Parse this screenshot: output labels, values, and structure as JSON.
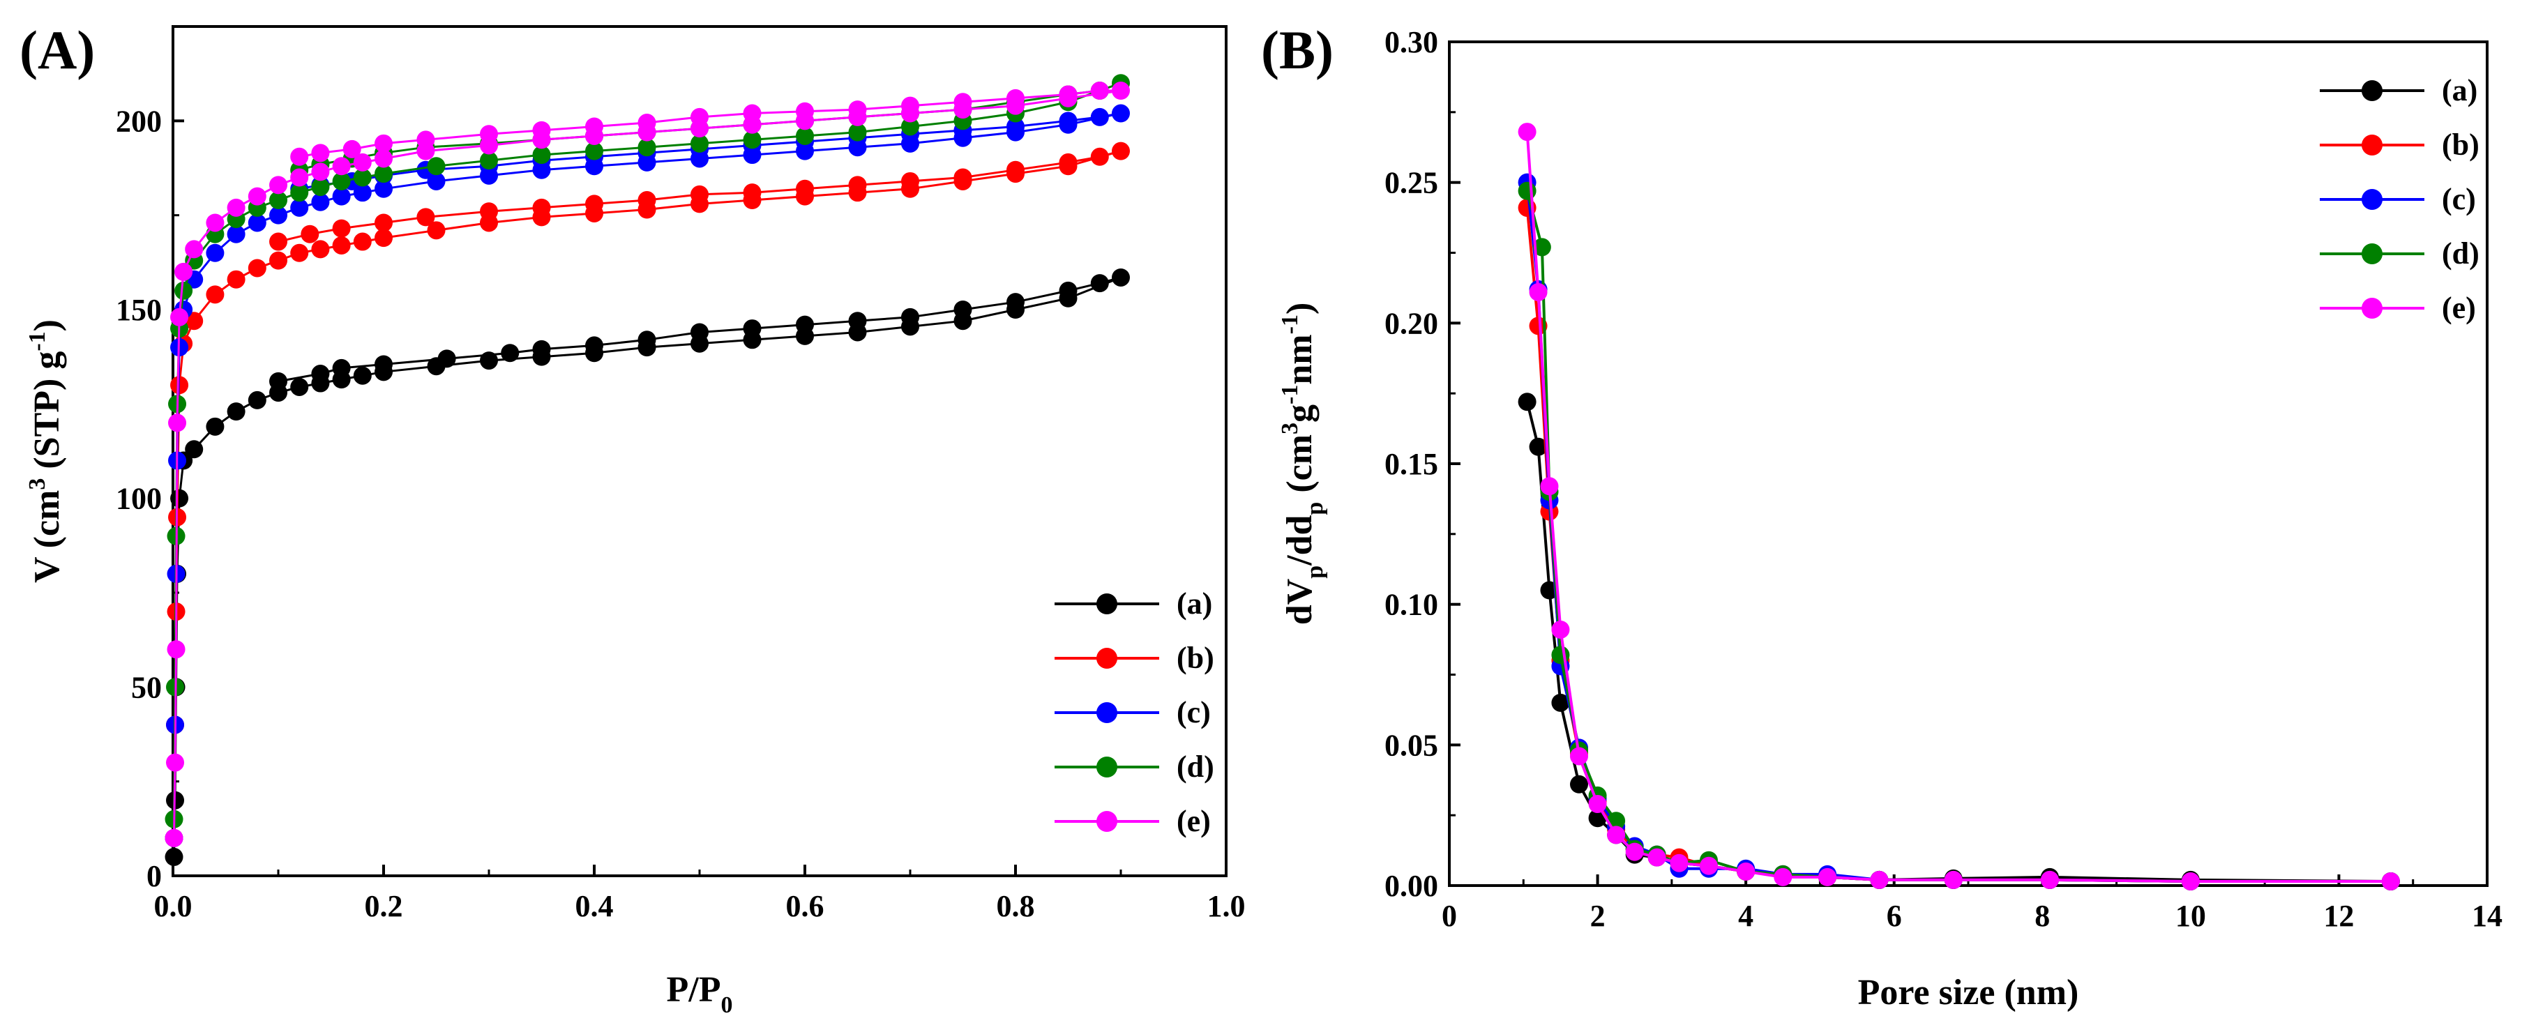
{
  "chart_data": [
    {
      "type": "scatter",
      "panel_label": "(A)",
      "xlabel_main": "P/P",
      "xlabel_sub": "0",
      "ylabel_parts": {
        "a": "V (cm",
        "sup1": "3",
        "b": " (STP) g",
        "sup2": "-1",
        "c": ")"
      },
      "xlim": [
        0,
        1.0
      ],
      "ylim": [
        0,
        225
      ],
      "xticks": [
        "0.0",
        "0.2",
        "0.4",
        "0.6",
        "0.8",
        "1.0"
      ],
      "yticks": [
        "0",
        "50",
        "100",
        "150",
        "200"
      ],
      "legend_position": "bottom-right",
      "series": [
        {
          "name": "(a)",
          "color": "#000000",
          "x": [
            0.001,
            0.002,
            0.003,
            0.004,
            0.006,
            0.01,
            0.02,
            0.04,
            0.06,
            0.08,
            0.1,
            0.12,
            0.14,
            0.16,
            0.18,
            0.2,
            0.25,
            0.3,
            0.35,
            0.4,
            0.45,
            0.5,
            0.55,
            0.6,
            0.65,
            0.7,
            0.75,
            0.8,
            0.85,
            0.9,
            0.88,
            0.85,
            0.8,
            0.75,
            0.7,
            0.65,
            0.6,
            0.55,
            0.5,
            0.45,
            0.4,
            0.35,
            0.32,
            0.26,
            0.2,
            0.16,
            0.14,
            0.1
          ],
          "y": [
            5,
            20,
            50,
            80,
            100,
            110,
            113,
            119,
            123,
            126,
            128,
            129.5,
            130.5,
            131.5,
            132.5,
            133.5,
            135,
            136.5,
            137.5,
            138.5,
            140,
            141,
            142,
            143,
            144,
            145.5,
            147,
            150,
            153,
            158.5,
            157,
            155,
            152,
            150,
            148,
            147,
            146,
            145,
            144,
            142,
            140.5,
            139.5,
            138.5,
            137,
            135.5,
            134.5,
            133,
            131
          ]
        },
        {
          "name": "(b)",
          "color": "#ff0000",
          "x": [
            0.001,
            0.002,
            0.003,
            0.004,
            0.006,
            0.01,
            0.02,
            0.04,
            0.06,
            0.08,
            0.1,
            0.12,
            0.14,
            0.16,
            0.18,
            0.2,
            0.25,
            0.3,
            0.35,
            0.4,
            0.45,
            0.5,
            0.55,
            0.6,
            0.65,
            0.7,
            0.75,
            0.8,
            0.85,
            0.9,
            0.88,
            0.85,
            0.8,
            0.75,
            0.7,
            0.65,
            0.6,
            0.55,
            0.5,
            0.45,
            0.4,
            0.35,
            0.3,
            0.24,
            0.2,
            0.16,
            0.13,
            0.1
          ],
          "y": [
            10,
            40,
            70,
            95,
            130,
            141,
            147,
            154,
            158,
            161,
            163,
            165,
            166,
            167,
            168,
            169,
            171,
            173,
            174.5,
            175.5,
            176.5,
            178,
            179,
            180,
            181,
            182,
            184,
            186,
            188,
            192,
            190.5,
            189,
            187,
            185,
            184,
            183,
            182,
            181,
            180.5,
            179,
            178,
            177,
            176,
            174.5,
            173,
            171.5,
            170,
            168
          ]
        },
        {
          "name": "(c)",
          "color": "#0000ff",
          "x": [
            0.001,
            0.002,
            0.003,
            0.004,
            0.006,
            0.01,
            0.02,
            0.04,
            0.06,
            0.08,
            0.1,
            0.12,
            0.14,
            0.16,
            0.18,
            0.2,
            0.25,
            0.3,
            0.35,
            0.4,
            0.45,
            0.5,
            0.55,
            0.6,
            0.65,
            0.7,
            0.75,
            0.8,
            0.85,
            0.9,
            0.88,
            0.85,
            0.8,
            0.75,
            0.7,
            0.65,
            0.6,
            0.55,
            0.5,
            0.45,
            0.4,
            0.35,
            0.3,
            0.24,
            0.2,
            0.17,
            0.14,
            0.12
          ],
          "y": [
            10,
            40,
            80,
            110,
            140,
            150,
            158,
            165,
            170,
            173,
            175,
            177,
            178.5,
            180,
            181,
            182,
            184,
            185.5,
            187,
            188,
            189,
            190,
            191,
            192,
            193,
            194,
            195.5,
            197,
            199,
            202,
            201,
            200,
            198.5,
            197.5,
            196.5,
            195.5,
            194.5,
            193.5,
            192.5,
            191.5,
            190.5,
            189.5,
            188,
            187,
            185.5,
            184,
            183,
            182
          ]
        },
        {
          "name": "(d)",
          "color": "#008000",
          "x": [
            0.001,
            0.002,
            0.003,
            0.004,
            0.006,
            0.01,
            0.02,
            0.04,
            0.06,
            0.08,
            0.1,
            0.12,
            0.14,
            0.16,
            0.18,
            0.2,
            0.25,
            0.3,
            0.35,
            0.4,
            0.45,
            0.5,
            0.55,
            0.6,
            0.65,
            0.7,
            0.75,
            0.8,
            0.85,
            0.9,
            0.88,
            0.85,
            0.8,
            0.75,
            0.7,
            0.65,
            0.6,
            0.55,
            0.5,
            0.45,
            0.4,
            0.35,
            0.3,
            0.24,
            0.2,
            0.17,
            0.14,
            0.12
          ],
          "y": [
            15,
            50,
            90,
            125,
            145,
            155,
            163,
            170,
            174,
            177,
            179,
            181,
            182.5,
            184,
            185,
            186,
            188,
            189.5,
            191,
            192,
            193,
            194,
            195,
            196,
            197,
            198.5,
            200,
            202,
            205,
            210,
            208,
            207,
            205,
            203,
            202,
            201,
            200,
            199,
            198,
            197,
            196,
            195,
            194,
            193,
            191.5,
            190,
            188.5,
            187
          ]
        },
        {
          "name": "(e)",
          "color": "#ff00ff",
          "x": [
            0.001,
            0.002,
            0.003,
            0.004,
            0.006,
            0.01,
            0.02,
            0.04,
            0.06,
            0.08,
            0.1,
            0.12,
            0.14,
            0.16,
            0.18,
            0.2,
            0.24,
            0.3,
            0.35,
            0.4,
            0.45,
            0.5,
            0.55,
            0.6,
            0.65,
            0.7,
            0.75,
            0.8,
            0.85,
            0.9,
            0.88,
            0.85,
            0.8,
            0.75,
            0.7,
            0.65,
            0.6,
            0.55,
            0.5,
            0.45,
            0.4,
            0.35,
            0.3,
            0.24,
            0.2,
            0.17,
            0.14,
            0.12
          ],
          "y": [
            10,
            30,
            60,
            120,
            148,
            160,
            166,
            173,
            177,
            180,
            183,
            185,
            186.5,
            188,
            189,
            190,
            192,
            193.5,
            195,
            196,
            197,
            198,
            199,
            200,
            201,
            202,
            203,
            204,
            206,
            208,
            208,
            207,
            206,
            205,
            204,
            203,
            202.5,
            202,
            201,
            199.5,
            198.5,
            197.5,
            196.5,
            195,
            194,
            192.5,
            191.5,
            190.5
          ]
        }
      ]
    },
    {
      "type": "line",
      "panel_label": "(B)",
      "xlabel": "Pore size (nm)",
      "ylabel_parts": {
        "a": "dV",
        "sub1": "p",
        "b": "/dd",
        "sub2": "p",
        "c": " (cm",
        "sup1": "3",
        "d": "g",
        "sup2": "-1",
        "e": "nm",
        "sup3": "-1",
        "f": ")"
      },
      "xlim": [
        0,
        14
      ],
      "ylim": [
        0,
        0.3
      ],
      "xticks": [
        "0",
        "2",
        "4",
        "6",
        "8",
        "10",
        "12",
        "14"
      ],
      "yticks": [
        "0.00",
        "0.05",
        "0.10",
        "0.15",
        "0.20",
        "0.25",
        "0.30"
      ],
      "legend_position": "top-right",
      "series": [
        {
          "name": "(a)",
          "color": "#000000",
          "x": [
            1.05,
            1.2,
            1.35,
            1.5,
            1.75,
            2.0,
            2.25,
            2.5,
            2.8,
            3.1,
            3.5,
            4.0,
            4.5,
            5.1,
            5.8,
            6.8,
            8.1,
            10.0,
            12.7
          ],
          "y": [
            0.172,
            0.156,
            0.105,
            0.065,
            0.036,
            0.024,
            0.018,
            0.011,
            0.01,
            0.008,
            0.007,
            0.005,
            0.004,
            0.003,
            0.002,
            0.0025,
            0.003,
            0.002,
            0.0015
          ]
        },
        {
          "name": "(b)",
          "color": "#ff0000",
          "x": [
            1.05,
            1.2,
            1.35,
            1.5,
            1.75,
            2.0,
            2.25,
            2.5,
            2.8,
            3.1,
            3.5,
            4.0,
            4.5,
            5.1,
            5.8,
            6.8,
            8.1,
            10.0,
            12.7
          ],
          "y": [
            0.241,
            0.199,
            0.133,
            0.08,
            0.047,
            0.03,
            0.02,
            0.013,
            0.011,
            0.01,
            0.007,
            0.005,
            0.004,
            0.003,
            0.002,
            0.002,
            0.002,
            0.0015,
            0.0015
          ]
        },
        {
          "name": "(c)",
          "color": "#0000ff",
          "x": [
            1.05,
            1.2,
            1.35,
            1.5,
            1.75,
            2.0,
            2.25,
            2.5,
            2.8,
            3.1,
            3.5,
            4.0,
            4.5,
            5.1,
            5.8,
            6.8,
            8.1,
            10.0,
            12.7
          ],
          "y": [
            0.25,
            0.212,
            0.137,
            0.078,
            0.049,
            0.031,
            0.021,
            0.014,
            0.011,
            0.006,
            0.006,
            0.006,
            0.004,
            0.004,
            0.002,
            0.002,
            0.002,
            0.0015,
            0.0015
          ]
        },
        {
          "name": "(d)",
          "color": "#008000",
          "x": [
            1.05,
            1.25,
            1.35,
            1.5,
            1.75,
            2.0,
            2.25,
            2.5,
            2.8,
            3.1,
            3.5,
            4.0,
            4.5,
            5.1,
            5.8,
            6.8,
            8.1,
            10.0,
            12.7
          ],
          "y": [
            0.247,
            0.227,
            0.14,
            0.082,
            0.048,
            0.032,
            0.023,
            0.013,
            0.011,
            0.008,
            0.009,
            0.005,
            0.004,
            0.003,
            0.002,
            0.002,
            0.002,
            0.0015,
            0.0015
          ]
        },
        {
          "name": "(e)",
          "color": "#ff00ff",
          "x": [
            1.05,
            1.2,
            1.35,
            1.5,
            1.75,
            2.0,
            2.25,
            2.5,
            2.8,
            3.1,
            3.5,
            4.0,
            4.5,
            5.1,
            5.8,
            6.8,
            8.1,
            10.0,
            12.7
          ],
          "y": [
            0.268,
            0.211,
            0.142,
            0.091,
            0.046,
            0.029,
            0.018,
            0.012,
            0.01,
            0.008,
            0.007,
            0.005,
            0.003,
            0.003,
            0.002,
            0.002,
            0.002,
            0.0015,
            0.0015
          ]
        }
      ]
    }
  ]
}
